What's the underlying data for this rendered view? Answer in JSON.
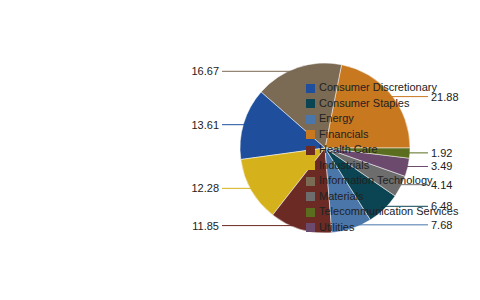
{
  "chart_data": {
    "type": "pie",
    "categories": [
      "Financials",
      "Information Technology",
      "Consumer Discretionary",
      "Industrials",
      "Health Care",
      "Energy",
      "Consumer Staples",
      "Materials",
      "Utilities",
      "Telecommunication Services"
    ],
    "values": [
      21.88,
      16.67,
      13.61,
      12.28,
      11.85,
      7.68,
      6.48,
      4.14,
      3.49,
      1.92
    ],
    "colors": [
      "#c8781f",
      "#7b6a54",
      "#1f4f9c",
      "#d5b21c",
      "#6b2a24",
      "#4a76aa",
      "#0b4452",
      "#6d6d6d",
      "#6c4a6e",
      "#5b6e1f"
    ],
    "data_labels": true,
    "legend": "right"
  }
}
